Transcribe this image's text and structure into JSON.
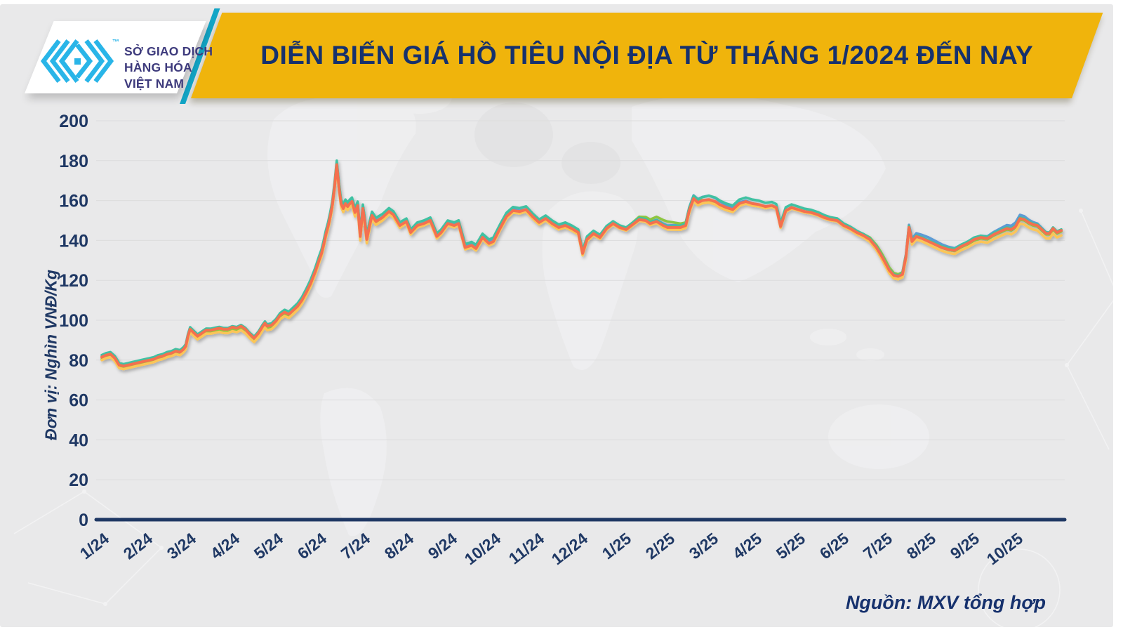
{
  "header": {
    "title": "DIỄN BIẾN GIÁ HỒ TIÊU NỘI ĐỊA TỪ THÁNG 1/2024 ĐẾN NAY",
    "logo": {
      "lines": [
        "SỞ GIAO DỊCH",
        "HÀNG HÓA",
        "VIỆT NAM"
      ],
      "trademark": "™"
    }
  },
  "footer": {
    "source": "Nguồn: MXV tổng hợp"
  },
  "colors": {
    "background": "#e9e9ea",
    "banner_yellow": "#f0b40c",
    "navy_text": "#1f3864",
    "accent_stripe": "#12a5c6",
    "logo_cyan": "#29b5e8",
    "gridline": "#dcdcdd"
  },
  "chart_data": {
    "type": "line",
    "title": "DIỄN BIẾN GIÁ HỒ TIÊU NỘI ĐỊA TỪ THÁNG 1/2024 ĐẾN NAY",
    "ylabel": "Đơn vị: Nghìn VNĐ/Kg",
    "values_unit": "nghìn VNĐ/kg",
    "ylim": [
      0,
      200
    ],
    "ytick_step": 20,
    "grid": "horizontal",
    "legend": "none",
    "x_tick_labels": [
      "1/24",
      "2/24",
      "3/24",
      "4/24",
      "5/24",
      "6/24",
      "7/24",
      "8/24",
      "9/24",
      "10/24",
      "11/24",
      "12/24",
      "1/25",
      "2/25",
      "3/25",
      "4/25",
      "5/25",
      "6/25",
      "7/25",
      "8/25",
      "9/25",
      "10/25"
    ],
    "x_month_index": [
      0,
      0.1,
      0.2,
      0.3,
      0.4,
      0.5,
      0.6,
      0.7,
      0.8,
      0.9,
      1,
      1.1,
      1.2,
      1.3,
      1.4,
      1.5,
      1.6,
      1.7,
      1.8,
      1.88,
      1.93,
      1.98,
      2.03,
      2.1,
      2.2,
      2.3,
      2.4,
      2.5,
      2.6,
      2.7,
      2.8,
      2.9,
      3,
      3.1,
      3.2,
      3.3,
      3.4,
      3.5,
      3.6,
      3.7,
      3.75,
      3.8,
      3.9,
      4,
      4.1,
      4.2,
      4.3,
      4.4,
      4.5,
      4.6,
      4.7,
      4.8,
      4.9,
      5,
      5.05,
      5.1,
      5.15,
      5.2,
      5.25,
      5.3,
      5.35,
      5.4,
      5.45,
      5.5,
      5.55,
      5.6,
      5.65,
      5.7,
      5.75,
      5.82,
      5.88,
      5.94,
      6,
      6.04,
      6.09,
      6.15,
      6.21,
      6.3,
      6.45,
      6.6,
      6.7,
      6.85,
      7,
      7.1,
      7.25,
      7.4,
      7.55,
      7.7,
      7.8,
      7.95,
      8.1,
      8.2,
      8.35,
      8.5,
      8.6,
      8.75,
      8.9,
      9,
      9.15,
      9.3,
      9.45,
      9.6,
      9.75,
      9.9,
      10.05,
      10.2,
      10.35,
      10.5,
      10.65,
      10.8,
      10.95,
      11.05,
      11.15,
      11.3,
      11.45,
      11.6,
      11.75,
      11.9,
      12.05,
      12.2,
      12.35,
      12.5,
      12.6,
      12.75,
      12.9,
      13,
      13.15,
      13.3,
      13.42,
      13.5,
      13.6,
      13.7,
      13.8,
      13.95,
      14.1,
      14.2,
      14.35,
      14.5,
      14.65,
      14.8,
      14.95,
      15.1,
      15.25,
      15.4,
      15.5,
      15.6,
      15.72,
      15.85,
      16,
      16.15,
      16.3,
      16.45,
      16.6,
      16.75,
      16.9,
      17.05,
      17.2,
      17.35,
      17.5,
      17.65,
      17.8,
      17.9,
      18,
      18.1,
      18.2,
      18.3,
      18.4,
      18.48,
      18.55,
      18.62,
      18.72,
      18.85,
      19,
      19.15,
      19.3,
      19.45,
      19.6,
      19.75,
      19.9,
      20.05,
      20.2,
      20.35,
      20.5,
      20.65,
      20.8,
      20.9,
      21,
      21.1,
      21.2,
      21.3,
      21.4,
      21.5,
      21.6,
      21.7,
      21.78,
      21.86,
      21.95,
      22.05
    ],
    "base_values": [
      81.5,
      82.5,
      83,
      81,
      77.5,
      77,
      77.5,
      78,
      78.5,
      79,
      79.5,
      80,
      80.5,
      81.5,
      82,
      83,
      83.5,
      84.5,
      84,
      85.5,
      87,
      92,
      95.5,
      94,
      92,
      93.5,
      95,
      95,
      95.5,
      96,
      95.5,
      95.5,
      96.5,
      96,
      97,
      95.5,
      93,
      91,
      93.5,
      97,
      98.5,
      97,
      97.5,
      99.5,
      102.5,
      104,
      103,
      105,
      107,
      110,
      114,
      118.5,
      124,
      130.5,
      133.5,
      138,
      143,
      147,
      152,
      158,
      167,
      178,
      167,
      158.5,
      156,
      158.5,
      157,
      158.5,
      159.5,
      154,
      157.5,
      142,
      156,
      150,
      140.5,
      147,
      152.5,
      149.5,
      151.5,
      154.5,
      153,
      147.5,
      149.5,
      144,
      147.5,
      148.5,
      150,
      142,
      144,
      148.5,
      147.5,
      148.5,
      136.5,
      137.5,
      136,
      141.5,
      138.5,
      139.5,
      146,
      152,
      155,
      154.5,
      155.5,
      152,
      149,
      151,
      148.5,
      146.5,
      147.5,
      146,
      144,
      133.5,
      140.5,
      143.5,
      141.5,
      146,
      148.5,
      146.5,
      145.5,
      148,
      150.5,
      150,
      148.5,
      149.5,
      147.5,
      146.5,
      146.5,
      146.5,
      147.5,
      155,
      161,
      159,
      160,
      160.5,
      159.5,
      158,
      156.5,
      155.5,
      158.5,
      159.5,
      158.5,
      158,
      157,
      157.5,
      156.5,
      147,
      155,
      156.5,
      155.5,
      154.5,
      154,
      153,
      151.5,
      150.5,
      150,
      147.5,
      146,
      144,
      142.5,
      140.5,
      136.5,
      133,
      129,
      125,
      122.5,
      122,
      123,
      132,
      146.5,
      139.5,
      142,
      141,
      139.5,
      138,
      136.5,
      135.5,
      135,
      137,
      138.5,
      140.5,
      141.5,
      141,
      143,
      144.5,
      146,
      145.5,
      147,
      151,
      150.5,
      149,
      148,
      147.5,
      145.5,
      143.5,
      143.5,
      146,
      144,
      145
    ],
    "series": [
      {
        "name": "blue",
        "color": "#5b9bd5",
        "offset_from_orange_by_month": [
          0,
          0,
          0,
          -0.5,
          -0.5,
          1,
          0.5,
          0,
          0.5,
          1,
          0,
          0.5,
          0.5,
          1,
          2,
          0,
          0,
          0.5,
          0.5,
          2,
          0.5,
          2,
          0
        ]
      },
      {
        "name": "green",
        "color": "#8dc63f",
        "offset_from_orange_by_month": [
          -1,
          -0.5,
          -0.5,
          -1,
          -1,
          0.5,
          -0.5,
          -0.5,
          0,
          0,
          -0.5,
          0,
          0.5,
          3,
          -0.5,
          -0.5,
          0,
          0,
          1.5,
          0,
          -0.5,
          -0.5,
          -0.5
        ]
      },
      {
        "name": "teal",
        "color": "#3fc1a2",
        "offset_from_orange_by_month": [
          1,
          1,
          1,
          0.5,
          1,
          2,
          2,
          1.5,
          1.5,
          2,
          1.5,
          1.5,
          1,
          0.5,
          2,
          2,
          1.5,
          1,
          0.5,
          0.5,
          1,
          0.5,
          0.5
        ]
      },
      {
        "name": "yellow",
        "color": "#fbc558",
        "offset_from_orange_by_month": [
          -1.5,
          -1.5,
          -1.5,
          -2,
          -2,
          -1.5,
          -2,
          -1,
          -1,
          -1,
          -1,
          -1,
          -0.5,
          -1,
          -1.5,
          -1,
          -0.5,
          -0.5,
          -1.5,
          -1.5,
          -2,
          -2.5,
          -2.5
        ]
      },
      {
        "name": "orange",
        "color": "#f4704f",
        "offset_from_orange_by_month": [
          0,
          0,
          0,
          0,
          0,
          0,
          0,
          0,
          0,
          0,
          0,
          0,
          0,
          0,
          0,
          0,
          0,
          0,
          0,
          0,
          0,
          0,
          0
        ]
      }
    ]
  }
}
